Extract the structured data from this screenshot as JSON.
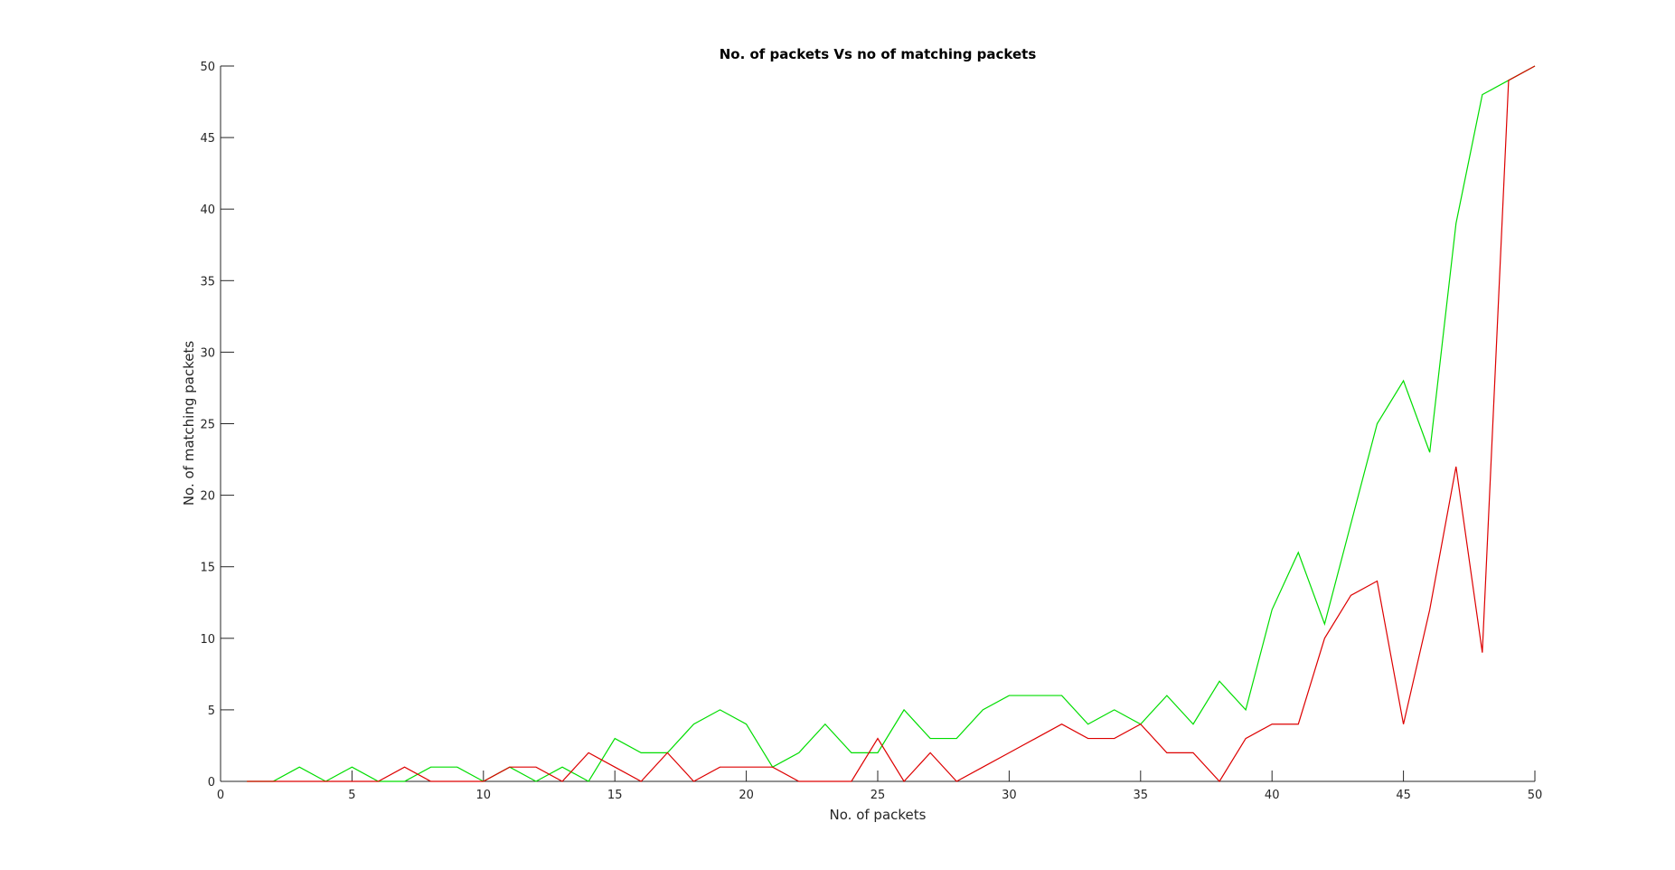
{
  "chart_data": {
    "type": "line",
    "title": "No. of packets Vs no of matching packets",
    "xlabel": "No. of packets",
    "ylabel": "No. of matching packets",
    "xlim": [
      0,
      50
    ],
    "ylim": [
      0,
      50
    ],
    "xticks": [
      0,
      5,
      10,
      15,
      20,
      25,
      30,
      35,
      40,
      45,
      50
    ],
    "yticks": [
      0,
      5,
      10,
      15,
      20,
      25,
      30,
      35,
      40,
      45,
      50
    ],
    "grid": false,
    "x": [
      1,
      2,
      3,
      4,
      5,
      6,
      7,
      8,
      9,
      10,
      11,
      12,
      13,
      14,
      15,
      16,
      17,
      18,
      19,
      20,
      21,
      22,
      23,
      24,
      25,
      26,
      27,
      28,
      29,
      30,
      31,
      32,
      33,
      34,
      35,
      36,
      37,
      38,
      39,
      40,
      41,
      42,
      43,
      44,
      45,
      46,
      47,
      48,
      49,
      50
    ],
    "series": [
      {
        "color": "#00dd00",
        "values": [
          0,
          0,
          1,
          0,
          1,
          0,
          0,
          1,
          1,
          0,
          1,
          0,
          1,
          0,
          3,
          2,
          2,
          4,
          5,
          4,
          1,
          2,
          4,
          2,
          2,
          5,
          3,
          3,
          5,
          6,
          6,
          6,
          4,
          5,
          4,
          6,
          4,
          7,
          5,
          12,
          16,
          11,
          18,
          25,
          28,
          23,
          39,
          48,
          49,
          50
        ]
      },
      {
        "color": "#dd0000",
        "values": [
          0,
          0,
          0,
          0,
          0,
          0,
          1,
          0,
          0,
          0,
          1,
          1,
          0,
          2,
          1,
          0,
          2,
          0,
          1,
          1,
          1,
          0,
          0,
          0,
          3,
          0,
          2,
          0,
          1,
          2,
          3,
          4,
          3,
          3,
          4,
          2,
          2,
          0,
          3,
          4,
          4,
          10,
          13,
          14,
          4,
          12,
          22,
          9,
          49,
          50
        ]
      }
    ]
  }
}
